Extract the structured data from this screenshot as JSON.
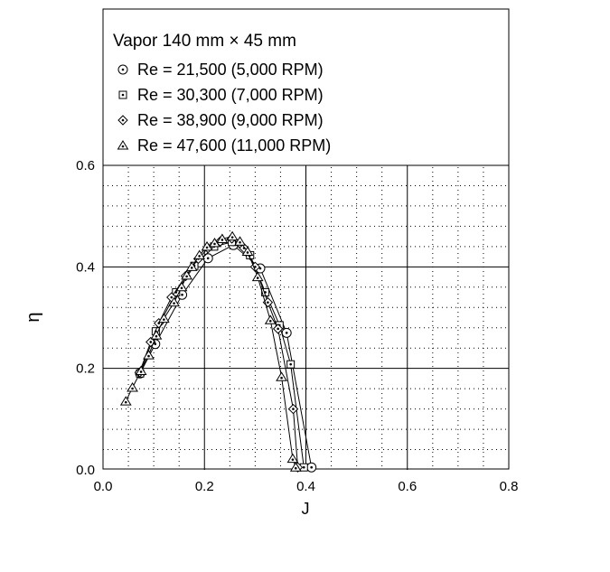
{
  "chart_data": {
    "type": "line",
    "title": "Vapor 140 mm × 45 mm",
    "xlabel": "J",
    "ylabel": "η",
    "xlim": [
      0.0,
      0.8
    ],
    "ylim": [
      0.0,
      0.6
    ],
    "x_ticks": [
      "0.0",
      "0.2",
      "0.4",
      "0.6",
      "0.8"
    ],
    "y_ticks": [
      "0.0",
      "0.2",
      "0.4",
      "0.6"
    ],
    "grid": true,
    "legend_position": "top",
    "series": [
      {
        "name": "Re = 21,500 (5,000 RPM)",
        "marker": "circle-dot",
        "points": [
          [
            0.073,
            0.19
          ],
          [
            0.103,
            0.248
          ],
          [
            0.156,
            0.345
          ],
          [
            0.207,
            0.417
          ],
          [
            0.257,
            0.443
          ],
          [
            0.31,
            0.397
          ],
          [
            0.362,
            0.27
          ],
          [
            0.411,
            0.005
          ]
        ]
      },
      {
        "name": "Re = 30,300 (7,000 RPM)",
        "marker": "square-dot",
        "points": [
          [
            0.073,
            0.19
          ],
          [
            0.104,
            0.273
          ],
          [
            0.144,
            0.35
          ],
          [
            0.18,
            0.402
          ],
          [
            0.219,
            0.44
          ],
          [
            0.254,
            0.449
          ],
          [
            0.29,
            0.423
          ],
          [
            0.32,
            0.35
          ],
          [
            0.348,
            0.285
          ],
          [
            0.37,
            0.208
          ],
          [
            0.396,
            0.005
          ]
        ]
      },
      {
        "name": "Re = 38,900 (9,000 RPM)",
        "marker": "diamond-dot",
        "points": [
          [
            0.072,
            0.192
          ],
          [
            0.094,
            0.252
          ],
          [
            0.11,
            0.289
          ],
          [
            0.135,
            0.34
          ],
          [
            0.163,
            0.382
          ],
          [
            0.188,
            0.416
          ],
          [
            0.207,
            0.437
          ],
          [
            0.231,
            0.45
          ],
          [
            0.254,
            0.456
          ],
          [
            0.278,
            0.437
          ],
          [
            0.3,
            0.4
          ],
          [
            0.325,
            0.33
          ],
          [
            0.345,
            0.278
          ],
          [
            0.375,
            0.12
          ],
          [
            0.384,
            0.005
          ]
        ]
      },
      {
        "name": "Re = 47,600 (11,000 RPM)",
        "marker": "triangle-dot",
        "points": [
          [
            0.045,
            0.135
          ],
          [
            0.058,
            0.162
          ],
          [
            0.075,
            0.195
          ],
          [
            0.09,
            0.226
          ],
          [
            0.105,
            0.265
          ],
          [
            0.12,
            0.298
          ],
          [
            0.14,
            0.33
          ],
          [
            0.155,
            0.36
          ],
          [
            0.165,
            0.383
          ],
          [
            0.175,
            0.4
          ],
          [
            0.19,
            0.423
          ],
          [
            0.205,
            0.44
          ],
          [
            0.22,
            0.447
          ],
          [
            0.235,
            0.455
          ],
          [
            0.255,
            0.46
          ],
          [
            0.27,
            0.45
          ],
          [
            0.285,
            0.43
          ],
          [
            0.305,
            0.38
          ],
          [
            0.33,
            0.295
          ],
          [
            0.352,
            0.183
          ],
          [
            0.374,
            0.022
          ],
          [
            0.38,
            0.005
          ]
        ]
      }
    ]
  }
}
